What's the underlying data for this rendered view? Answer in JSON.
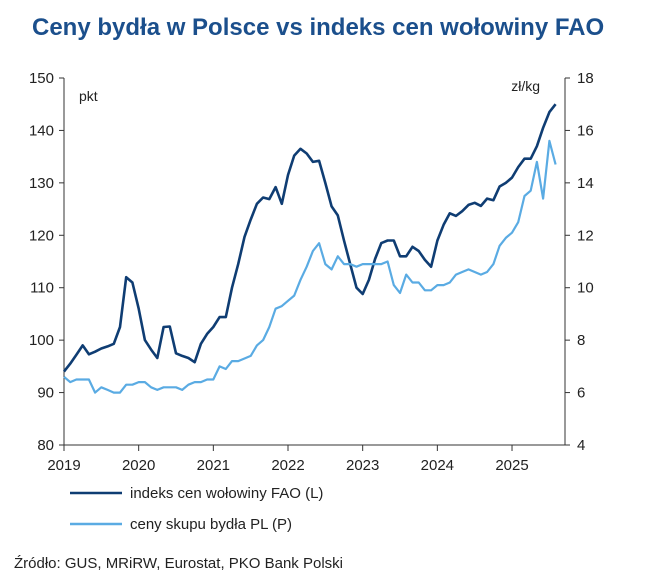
{
  "title": "Ceny bydła w Polsce vs indeks cen wołowiny FAO",
  "source": "Źródło: GUS, MRiRW, Eurostat, PKO Bank Polski",
  "colors": {
    "fao": "#0f3d73",
    "pl": "#5aabe3",
    "title": "#1b4f8c",
    "axis": "#333333"
  },
  "chart_data": {
    "type": "line",
    "left_axis": {
      "unit": "pkt",
      "ylim": [
        80,
        150
      ],
      "ticks": [
        80,
        90,
        100,
        110,
        120,
        130,
        140,
        150
      ]
    },
    "right_axis": {
      "unit": "zł/kg",
      "ylim": [
        4,
        18
      ],
      "ticks": [
        4,
        6,
        8,
        10,
        12,
        14,
        16,
        18
      ]
    },
    "x_ticks": [
      "2019",
      "2020",
      "2021",
      "2022",
      "2023",
      "2024",
      "2025"
    ],
    "grid": false,
    "legend_position": "bottom",
    "series": [
      {
        "name": "indeks cen wołowiny FAO (L)",
        "axis": "left",
        "start": "2019-01",
        "values": [
          94.0,
          95.5,
          97.2,
          99.0,
          97.3,
          97.8,
          98.4,
          98.8,
          99.3,
          102.5,
          112.0,
          111.0,
          106.0,
          100.0,
          98.2,
          96.6,
          102.5,
          102.6,
          97.5,
          97.0,
          96.6,
          95.8,
          99.3,
          101.2,
          102.5,
          104.4,
          104.4,
          110.0,
          114.5,
          119.7,
          123.0,
          126.0,
          127.2,
          126.9,
          129.2,
          126.0,
          131.5,
          135.2,
          136.5,
          135.6,
          134.0,
          134.2,
          130.0,
          125.5,
          123.8,
          119.0,
          114.5,
          110.0,
          108.8,
          111.5,
          115.5,
          118.5,
          119.0,
          119.0,
          116.0,
          116.0,
          117.8,
          117.0,
          115.3,
          114.0,
          119.0,
          122.0,
          124.2,
          123.7,
          124.6,
          125.8,
          126.2,
          125.6,
          127.0,
          126.7,
          129.3,
          130.0,
          131.0,
          133.0,
          134.6,
          134.6,
          137.0,
          140.5,
          143.5,
          145.0
        ]
      },
      {
        "name": "ceny skupu bydła PL (P)",
        "axis": "right",
        "start": "2019-01",
        "values": [
          6.6,
          6.4,
          6.5,
          6.5,
          6.5,
          6.0,
          6.2,
          6.1,
          6.0,
          6.0,
          6.3,
          6.3,
          6.4,
          6.4,
          6.2,
          6.1,
          6.2,
          6.2,
          6.2,
          6.1,
          6.3,
          6.4,
          6.4,
          6.5,
          6.5,
          7.0,
          6.9,
          7.2,
          7.2,
          7.3,
          7.4,
          7.8,
          8.0,
          8.5,
          9.2,
          9.3,
          9.5,
          9.7,
          10.3,
          10.8,
          11.4,
          11.7,
          10.9,
          10.7,
          11.2,
          10.9,
          10.9,
          10.8,
          10.9,
          10.9,
          10.9,
          10.9,
          11.0,
          10.1,
          9.8,
          10.5,
          10.2,
          10.2,
          9.9,
          9.9,
          10.1,
          10.1,
          10.2,
          10.5,
          10.6,
          10.7,
          10.6,
          10.5,
          10.6,
          10.9,
          11.6,
          11.9,
          12.1,
          12.5,
          13.5,
          13.7,
          14.8,
          13.4,
          15.6,
          14.7
        ]
      }
    ]
  }
}
